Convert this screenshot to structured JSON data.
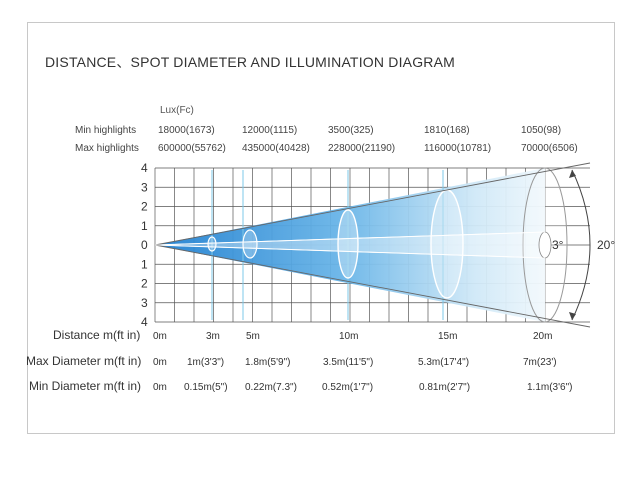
{
  "title": "DISTANCE、SPOT DIAMETER AND ILLUMINATION DIAGRAM",
  "lux_unit": "Lux(Fc)",
  "min_highlights": {
    "label": "Min highlights",
    "values": [
      "18000(1673)",
      "12000(1115)",
      "3500(325)",
      "1810(168)",
      "1050(98)"
    ]
  },
  "max_highlights": {
    "label": "Max highlights",
    "values": [
      "600000(55762)",
      "435000(40428)",
      "228000(21190)",
      "116000(10781)",
      "70000(6506)"
    ]
  },
  "y_ticks": [
    "4",
    "3",
    "2",
    "1",
    "0",
    "1",
    "2",
    "3",
    "4"
  ],
  "angles": {
    "narrow": "3°",
    "wide": "20°"
  },
  "distance": {
    "label": "Distance m(ft in)",
    "values": [
      "0m",
      "3m",
      "5m",
      "10m",
      "15m",
      "20m"
    ]
  },
  "max_diameter": {
    "label": "Max Diameter m(ft in)",
    "values": [
      "0m",
      "1m(3'3\")",
      "1.8m(5'9\")",
      "3.5m(11'5\")",
      "5.3m(17'4\")",
      "7m(23')"
    ]
  },
  "min_diameter": {
    "label": "Min Diameter m(ft in)",
    "values": [
      "0m",
      "0.15m(5\")",
      "0.22m(7.3\")",
      "0.52m(1'7\")",
      "0.81m(2'7\")",
      "1.1m(3'6\")"
    ]
  },
  "colors": {
    "beam_dark": "#2f8fd6",
    "beam_light": "#ffffff",
    "grid": "#555555",
    "accent_line": "#7ec8e8"
  }
}
